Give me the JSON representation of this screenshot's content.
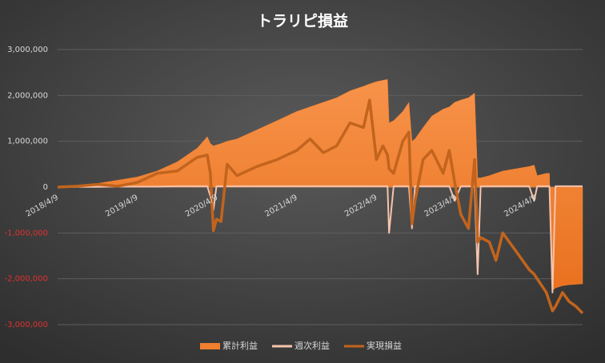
{
  "chart_data": {
    "type": "area-line",
    "title": "トラリピ損益",
    "x": [
      "2018/4/9",
      "2018/7/9",
      "2018/10/9",
      "2019/1/9",
      "2019/4/9",
      "2019/7/9",
      "2019/10/9",
      "2020/1/9",
      "2020/2/24",
      "2020/3/9",
      "2020/3/23",
      "2020/4/6",
      "2020/4/27",
      "2020/5/25",
      "2020/7/9",
      "2020/10/9",
      "2021/1/9",
      "2021/4/9",
      "2021/6/9",
      "2021/8/9",
      "2021/10/9",
      "2021/12/9",
      "2022/2/9",
      "2022/3/9",
      "2022/4/9",
      "2022/5/9",
      "2022/5/30",
      "2022/6/6",
      "2022/6/27",
      "2022/8/8",
      "2022/9/5",
      "2022/9/19",
      "2022/10/3",
      "2022/11/9",
      "2022/12/19",
      "2023/2/9",
      "2023/3/9",
      "2023/4/3",
      "2023/5/1",
      "2023/6/5",
      "2023/7/3",
      "2023/7/17",
      "2023/7/31",
      "2023/9/9",
      "2023/10/9",
      "2023/11/9",
      "2024/1/9",
      "2024/3/9",
      "2024/4/1",
      "2024/4/15",
      "2024/5/27",
      "2024/6/10",
      "2024/6/24",
      "2024/7/8",
      "2024/8/9",
      "2024/9/9",
      "2024/10/9",
      "2024/11/9"
    ],
    "series": [
      {
        "name": "累計利益",
        "kind": "area",
        "color": "#f07f2e",
        "values": [
          0,
          30000,
          80000,
          150000,
          220000,
          350000,
          550000,
          850000,
          1100000,
          950000,
          900000,
          920000,
          950000,
          1000000,
          1050000,
          1250000,
          1450000,
          1650000,
          1750000,
          1850000,
          1950000,
          2100000,
          2200000,
          2250000,
          2300000,
          2330000,
          2350000,
          1400000,
          1450000,
          1650000,
          1850000,
          1000000,
          1050000,
          1300000,
          1550000,
          1700000,
          1750000,
          1850000,
          1900000,
          1950000,
          2050000,
          200000,
          200000,
          250000,
          300000,
          350000,
          400000,
          450000,
          480000,
          250000,
          300000,
          300000,
          -2250000,
          -2200000,
          -2150000,
          -2130000,
          -2120000,
          -2110000
        ]
      },
      {
        "name": "週次利益",
        "kind": "line",
        "color": "#f6c3ac",
        "values": [
          0,
          5000,
          5000,
          10000,
          10000,
          10000,
          20000,
          20000,
          20000,
          -200000,
          -500000,
          20000,
          20000,
          20000,
          20000,
          20000,
          20000,
          20000,
          20000,
          20000,
          20000,
          20000,
          20000,
          20000,
          20000,
          20000,
          20000,
          -1000000,
          20000,
          20000,
          20000,
          -900000,
          20000,
          20000,
          20000,
          20000,
          20000,
          -300000,
          20000,
          20000,
          20000,
          -1900000,
          20000,
          20000,
          20000,
          20000,
          20000,
          20000,
          -300000,
          20000,
          20000,
          20000,
          -2300000,
          20000,
          20000,
          20000,
          20000,
          20000
        ]
      },
      {
        "name": "実現損益",
        "kind": "line",
        "color": "#c2641d",
        "values": [
          0,
          20000,
          60000,
          20000,
          100000,
          300000,
          350000,
          650000,
          700000,
          300000,
          -950000,
          -700000,
          -750000,
          500000,
          250000,
          450000,
          600000,
          800000,
          1050000,
          750000,
          900000,
          1400000,
          1300000,
          1900000,
          600000,
          900000,
          700000,
          400000,
          300000,
          1000000,
          1200000,
          -800000,
          -300000,
          600000,
          800000,
          300000,
          800000,
          100000,
          -600000,
          -900000,
          600000,
          -1200000,
          -1100000,
          -1200000,
          -1600000,
          -1000000,
          -1400000,
          -1800000,
          -1900000,
          -2000000,
          -2300000,
          -2500000,
          -2700000,
          -2600000,
          -2300000,
          -2500000,
          -2600000,
          -2750000
        ]
      }
    ],
    "ylim": [
      -3000000,
      3000000
    ],
    "yticks": [
      {
        "value": -3000000,
        "label": "-3,000,000"
      },
      {
        "value": -2000000,
        "label": "-2,000,000"
      },
      {
        "value": -1000000,
        "label": "-1,000,000"
      },
      0,
      {
        "value": 1000000,
        "label": "1,000,000"
      },
      {
        "value": 2000000,
        "label": "2,000,000"
      },
      {
        "value": 3000000,
        "label": "3,000,000"
      }
    ],
    "xticks": [
      "2018/4/9",
      "2019/4/9",
      "2020/4/9",
      "2021/4/9",
      "2022/4/9",
      "2023/4/9",
      "2024/4/9"
    ],
    "negative_tick_color": "#e03030",
    "grid": true,
    "legend": "bottom"
  }
}
